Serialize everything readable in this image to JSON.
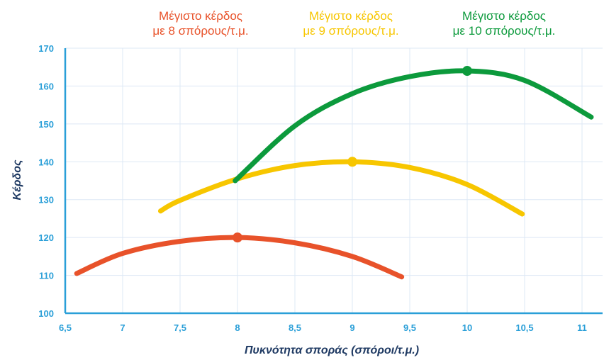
{
  "chart_data": {
    "type": "line",
    "title": "",
    "xlabel": "Πυκνότητα σποράς (σπόροι/τ.μ.)",
    "ylabel": "Κέρδος",
    "xlim": [
      6.5,
      11.1
    ],
    "ylim": [
      100,
      170
    ],
    "x_ticks": [
      "6,5",
      "7",
      "7,5",
      "8",
      "8,5",
      "9",
      "9,5",
      "10",
      "10,5",
      "11"
    ],
    "y_ticks": [
      "100",
      "110",
      "120",
      "130",
      "140",
      "150",
      "160",
      "170"
    ],
    "grid": true,
    "series": [
      {
        "color": "#e8522a",
        "x": [
          6.6,
          7.0,
          7.5,
          8.0,
          8.5,
          9.0,
          9.43
        ],
        "y": [
          110.5,
          115.8,
          119.0,
          120.0,
          118.6,
          115.0,
          109.6
        ],
        "peak": {
          "x": 8.0,
          "y": 120.0
        }
      },
      {
        "color": "#f7c600",
        "x": [
          7.33,
          7.5,
          8.0,
          8.5,
          9.0,
          9.5,
          10.0,
          10.48
        ],
        "y": [
          127.0,
          129.8,
          135.5,
          139.0,
          140.0,
          138.5,
          134.0,
          126.2
        ],
        "peak": {
          "x": 9.0,
          "y": 140.0
        }
      },
      {
        "color": "#0c9a3c",
        "x": [
          7.98,
          8.5,
          9.0,
          9.5,
          10.0,
          10.5,
          11.08
        ],
        "y": [
          135.0,
          149.5,
          158.0,
          162.5,
          164.0,
          161.5,
          151.8
        ],
        "peak": {
          "x": 10.0,
          "y": 164.0
        }
      }
    ],
    "annotations": [
      {
        "line1": "Μέγιστο κέρδος",
        "line2": "με 8 σπόρους/τ.μ.",
        "color": "#e8522a"
      },
      {
        "line1": "Μέγιστο κέρδος",
        "line2": "με 9 σπόρους/τ.μ.",
        "color": "#f7c600"
      },
      {
        "line1": "Μέγιστο κέρδος",
        "line2": "με 10 σπόρους/τ.μ.",
        "color": "#0c9a3c"
      }
    ],
    "axis_color": "#2a9fd8",
    "grid_color": "#dde8f5",
    "title_color": "#1f3a63"
  }
}
